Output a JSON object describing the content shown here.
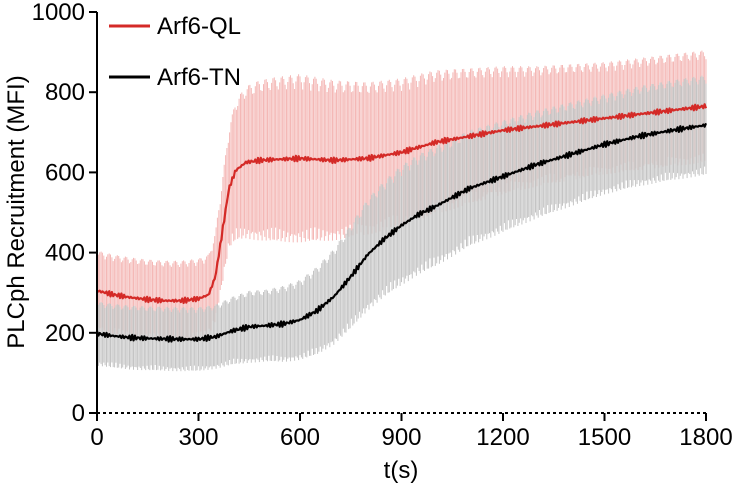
{
  "chart_data": {
    "type": "line",
    "xlabel": "t(s)",
    "ylabel": "PLCph Recruitment (MFI)",
    "xlim": [
      0,
      1800
    ],
    "ylim": [
      0,
      1000
    ],
    "xticks": [
      0,
      300,
      600,
      900,
      1200,
      1500,
      1800
    ],
    "yticks": [
      0,
      200,
      400,
      600,
      800,
      1000
    ],
    "x_tick_labels": [
      "0",
      "300",
      "600",
      "900",
      "1200",
      "1500",
      "1800"
    ],
    "y_tick_labels": [
      "0",
      "200",
      "400",
      "600",
      "800",
      "1000"
    ],
    "grid": false,
    "legend_position": "top-left",
    "error_bars": "vertical lines at every sample",
    "series": [
      {
        "name": "Arf6-QL",
        "color": "#d42a27",
        "error_color": "#f4b8b6",
        "x": [
          0,
          50,
          100,
          150,
          200,
          250,
          300,
          330,
          350,
          370,
          390,
          410,
          440,
          480,
          520,
          600,
          700,
          800,
          900,
          1000,
          1100,
          1200,
          1300,
          1400,
          1500,
          1600,
          1700,
          1800
        ],
        "y": [
          305,
          295,
          288,
          283,
          280,
          280,
          285,
          295,
          340,
          450,
          560,
          605,
          625,
          630,
          632,
          635,
          630,
          635,
          650,
          675,
          690,
          705,
          715,
          725,
          735,
          745,
          755,
          765
        ],
        "error": [
          100,
          100,
          100,
          100,
          100,
          100,
          100,
          100,
          110,
          130,
          150,
          175,
          190,
          200,
          205,
          210,
          200,
          190,
          185,
          180,
          170,
          160,
          150,
          145,
          140,
          140,
          140,
          140
        ]
      },
      {
        "name": "Arf6-TN",
        "color": "#000000",
        "error_color": "#c4c4c4",
        "x": [
          0,
          50,
          100,
          150,
          200,
          250,
          300,
          350,
          400,
          450,
          500,
          550,
          600,
          650,
          700,
          750,
          800,
          850,
          900,
          950,
          1000,
          1100,
          1200,
          1300,
          1400,
          1500,
          1600,
          1700,
          1800
        ],
        "y": [
          198,
          192,
          188,
          186,
          185,
          184,
          184,
          190,
          205,
          215,
          218,
          222,
          232,
          255,
          290,
          340,
          395,
          435,
          468,
          495,
          515,
          560,
          590,
          620,
          645,
          670,
          690,
          705,
          718
        ],
        "error": [
          80,
          80,
          80,
          80,
          80,
          80,
          80,
          80,
          85,
          90,
          90,
          95,
          100,
          110,
          120,
          130,
          140,
          145,
          150,
          150,
          150,
          145,
          140,
          135,
          130,
          125,
          125,
          125,
          125
        ]
      }
    ]
  }
}
